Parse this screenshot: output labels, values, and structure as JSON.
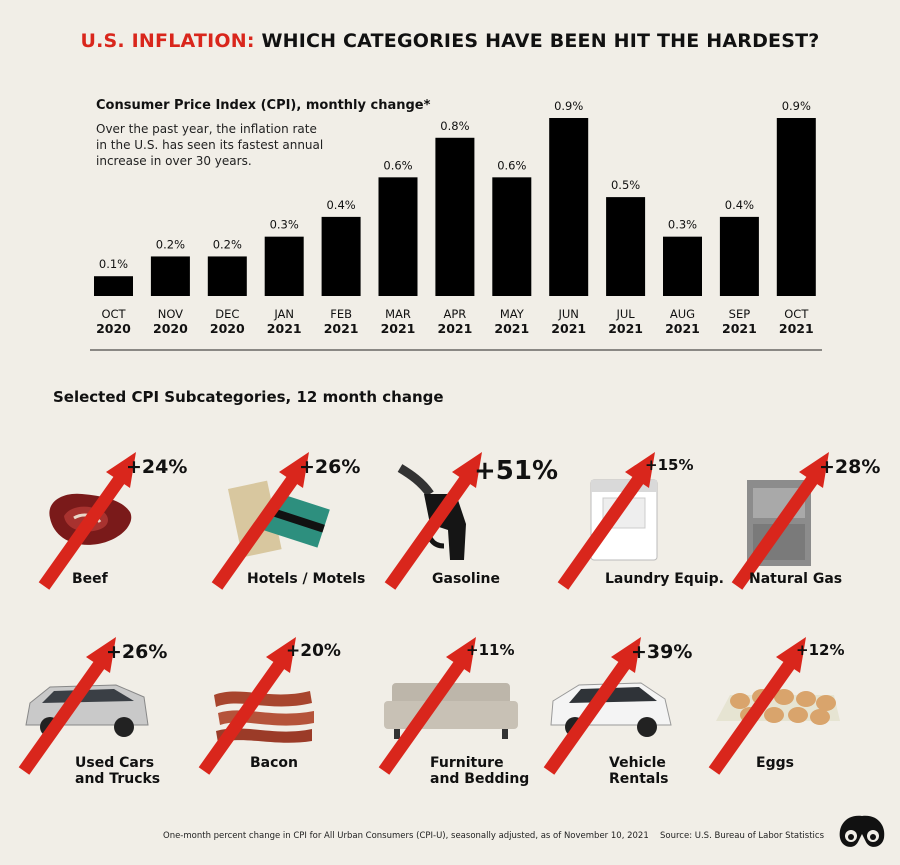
{
  "title": {
    "accent": "U.S. INFLATION:",
    "rest": "WHICH CATEGORIES HAVE BEEN HIT THE HARDEST?"
  },
  "cpi_heading": "Consumer Price Index (CPI), monthly change*",
  "cpi_note": "Over the past year, the inflation rate in the U.S. has seen its fastest annual increase in over 30 years.",
  "section_heading": "Selected CPI Subcategories, 12 month change",
  "colors": {
    "bar": "#000000",
    "arrow": "#d9261c",
    "background": "#f1eee7"
  },
  "chart_data": {
    "type": "bar",
    "title": "Consumer Price Index (CPI), monthly change*",
    "categories": [
      {
        "month": "OCT",
        "year": "2020"
      },
      {
        "month": "NOV",
        "year": "2020"
      },
      {
        "month": "DEC",
        "year": "2020"
      },
      {
        "month": "JAN",
        "year": "2021"
      },
      {
        "month": "FEB",
        "year": "2021"
      },
      {
        "month": "MAR",
        "year": "2021"
      },
      {
        "month": "APR",
        "year": "2021"
      },
      {
        "month": "MAY",
        "year": "2021"
      },
      {
        "month": "JUN",
        "year": "2021"
      },
      {
        "month": "JUL",
        "year": "2021"
      },
      {
        "month": "AUG",
        "year": "2021"
      },
      {
        "month": "SEP",
        "year": "2021"
      },
      {
        "month": "OCT",
        "year": "2021"
      }
    ],
    "values": [
      0.1,
      0.2,
      0.2,
      0.3,
      0.4,
      0.6,
      0.8,
      0.6,
      0.9,
      0.5,
      0.3,
      0.4,
      0.9
    ],
    "value_labels": [
      "0.1%",
      "0.2%",
      "0.2%",
      "0.3%",
      "0.4%",
      "0.6%",
      "0.8%",
      "0.6%",
      "0.9%",
      "0.5%",
      "0.3%",
      "0.4%",
      "0.9%"
    ],
    "unit": "%",
    "ylim": [
      0,
      0.9
    ],
    "grid": false
  },
  "subcategories": [
    {
      "label": "Beef",
      "value": "+24%",
      "icon": "steak-icon"
    },
    {
      "label": "Hotels / Motels",
      "value": "+26%",
      "icon": "hotel-keycard-icon"
    },
    {
      "label": "Gasoline",
      "value": "+51%",
      "icon": "fuel-nozzle-icon"
    },
    {
      "label": "Laundry Equip.",
      "value": "+15%",
      "icon": "washing-machine-icon"
    },
    {
      "label": "Natural Gas",
      "value": "+28%",
      "icon": "gas-furnace-icon"
    },
    {
      "label": "Used Cars\nand Trucks",
      "value": "+26%",
      "icon": "minivan-icon"
    },
    {
      "label": "Bacon",
      "value": "+20%",
      "icon": "bacon-icon"
    },
    {
      "label": "Furniture\nand Bedding",
      "value": "+11%",
      "icon": "sofa-icon"
    },
    {
      "label": "Vehicle\nRentals",
      "value": "+39%",
      "icon": "suv-icon"
    },
    {
      "label": "Eggs",
      "value": "+12%",
      "icon": "egg-carton-icon"
    }
  ],
  "footnote": "One-month percent change in CPI for All Urban Consumers (CPI-U), seasonally adjusted, as of November 10, 2021",
  "source": "Source: U.S. Bureau of Labor Statistics"
}
